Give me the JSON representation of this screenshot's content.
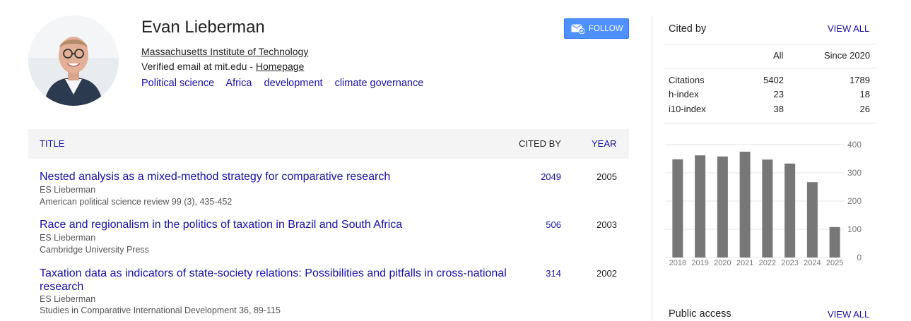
{
  "profile": {
    "name": "Evan Lieberman",
    "affiliation": "Massachusetts Institute of Technology",
    "email_text": "Verified email at mit.edu - ",
    "homepage_label": "Homepage",
    "interests": [
      "Political science",
      "Africa",
      "development",
      "climate governance"
    ],
    "follow_label": "FOLLOW"
  },
  "table": {
    "col_title": "TITLE",
    "col_cited": "CITED BY",
    "col_year": "YEAR",
    "rows": [
      {
        "title": "Nested analysis as a mixed-method strategy for comparative research",
        "authors": "ES Lieberman",
        "venue": "American political science review 99 (3), 435-452",
        "cited": "2049",
        "year": "2005"
      },
      {
        "title": "Race and regionalism in the politics of taxation in Brazil and South Africa",
        "authors": "ES Lieberman",
        "venue": "Cambridge University Press",
        "cited": "506",
        "year": "2003"
      },
      {
        "title": "Taxation data as indicators of state-society relations: Possibilities and pitfalls in cross-national research",
        "authors": "ES Lieberman",
        "venue": "Studies in Comparative International Development 36, 89-115",
        "cited": "314",
        "year": "2002"
      }
    ]
  },
  "cited_by": {
    "title": "Cited by",
    "view_all": "VIEW ALL",
    "col_all": "All",
    "col_since": "Since 2020",
    "stats": [
      {
        "label": "Citations",
        "all": "5402",
        "since": "1789"
      },
      {
        "label": "h-index",
        "all": "23",
        "since": "18"
      },
      {
        "label": "i10-index",
        "all": "38",
        "since": "26"
      }
    ]
  },
  "public_access": {
    "title": "Public access",
    "view_all": "VIEW ALL"
  },
  "colors": {
    "link": "#1a0dab",
    "follow_button": "#4d90fe",
    "bar": "#777777"
  },
  "chart_data": {
    "type": "bar",
    "categories": [
      "2018",
      "2019",
      "2020",
      "2021",
      "2022",
      "2023",
      "2024",
      "2025"
    ],
    "values": [
      348,
      362,
      358,
      375,
      347,
      333,
      267,
      108
    ],
    "yticks": [
      0,
      100,
      200,
      300,
      400
    ],
    "ylim": [
      0,
      400
    ],
    "grid": true
  }
}
